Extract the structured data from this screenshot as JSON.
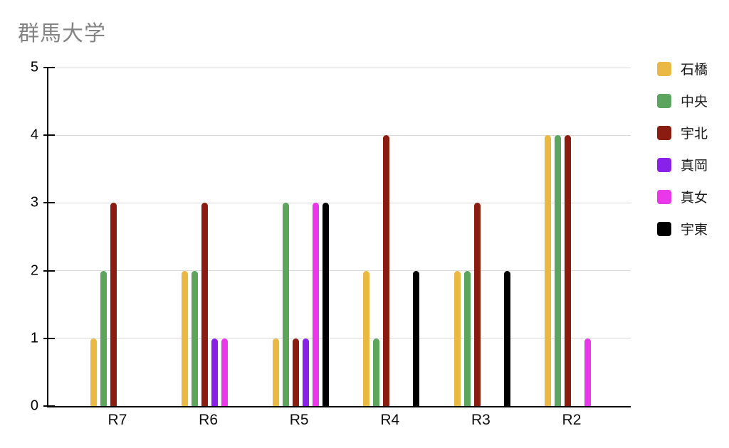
{
  "title": "群馬大学",
  "chart_data": {
    "type": "bar",
    "title": "群馬大学",
    "categories": [
      "R7",
      "R6",
      "R5",
      "R4",
      "R3",
      "R2"
    ],
    "series": [
      {
        "name": "石橋",
        "color": "#EBB844",
        "values": [
          1,
          2,
          1,
          2,
          2,
          4
        ]
      },
      {
        "name": "中央",
        "color": "#5BA55F",
        "values": [
          2,
          2,
          3,
          1,
          2,
          4
        ]
      },
      {
        "name": "宇北",
        "color": "#8B1D10",
        "values": [
          3,
          3,
          1,
          4,
          3,
          4
        ]
      },
      {
        "name": "真岡",
        "color": "#8A21EB",
        "values": [
          0,
          1,
          1,
          0,
          0,
          0
        ]
      },
      {
        "name": "真女",
        "color": "#EA37EA",
        "values": [
          0,
          1,
          3,
          0,
          0,
          1
        ]
      },
      {
        "name": "宇東",
        "color": "#000000",
        "values": [
          0,
          0,
          3,
          2,
          2,
          0
        ]
      }
    ],
    "xlabel": "",
    "ylabel": "",
    "ylim": [
      0,
      5
    ],
    "yticks": [
      0,
      1,
      2,
      3,
      4,
      5
    ],
    "grid": true,
    "legend_position": "right"
  },
  "colors": {
    "gridline": "#d9d9d9",
    "axis": "#000000",
    "title_text": "#848484"
  }
}
